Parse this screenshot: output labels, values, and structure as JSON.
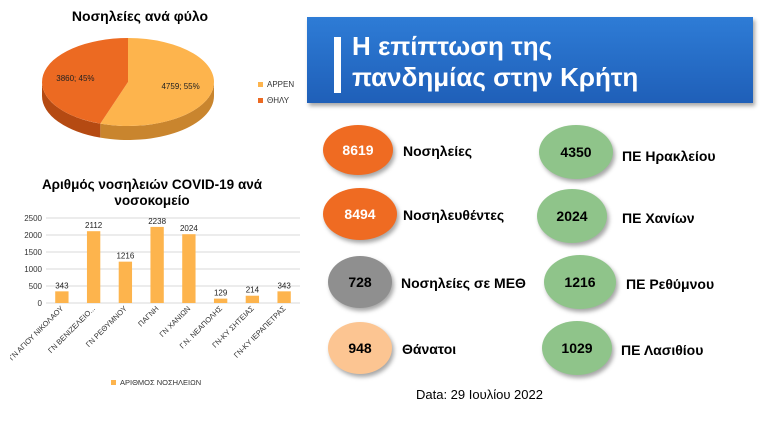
{
  "pie": {
    "title": "Νοσηλείες ανά φύλο",
    "legend": [
      {
        "label": "ΑΡΡΕΝ",
        "color": "#fdb44d"
      },
      {
        "label": "ΘΗΛΥ",
        "color": "#ec6a22"
      }
    ]
  },
  "bars": {
    "title": "Αριθμός νοσηλειών COVID-19 ανά νοσοκομείο",
    "legend_label": "ΑΡΙΘΜΟΣ ΝΟΣΗΛΕΙΩΝ",
    "color": "#fdb44d"
  },
  "chart_data": [
    {
      "type": "pie",
      "title": "Νοσηλείες ανά φύλο",
      "labels": [
        "ΑΡΡΕΝ",
        "ΘΗΛΥ"
      ],
      "values": [
        4759,
        3860
      ],
      "data_labels": [
        "4759; 55%",
        "3860; 45%"
      ]
    },
    {
      "type": "bar",
      "title": "Αριθμός νοσηλειών COVID-19 ανά νοσοκομείο",
      "categories": [
        "ΓΝ ΑΓΙΟΥ ΝΙΚΟΛΑΟΥ",
        "ΓΝ ΒΕΝΙΖΕΛΕΙΟ...",
        "ΓΝ ΡΕΘΥΜΝΟΥ",
        "ΠΑΓΝΗ",
        "ΓΝ ΧΑΝΙΩΝ",
        "Γ.Ν. ΝΕΑΠΟΛΗΣ",
        "ΓΝ-ΚΥ ΣΗΤΕΙΑΣ",
        "ΓΝ-ΚΥ ΙΕΡΑΠΕΤΡΑΣ"
      ],
      "series": [
        {
          "name": "ΑΡΙΘΜΟΣ ΝΟΣΗΛΕΙΩΝ",
          "values": [
            343,
            2112,
            1216,
            2238,
            2024,
            129,
            214,
            343
          ]
        }
      ],
      "ylim": [
        0,
        2500
      ],
      "yticks": [
        0,
        500,
        1000,
        1500,
        2000,
        2500
      ],
      "grid": true,
      "legend": "bottom"
    }
  ],
  "banner": {
    "line1": "Η επίπτωση της",
    "line2": "πανδημίας στην Κρήτη"
  },
  "stats_left": [
    {
      "value": "8619",
      "label": "Νοσηλείες",
      "color": "#ef6b22"
    },
    {
      "value": "8494",
      "label": "Νοσηλευθέντες",
      "color": "#ef6b22"
    },
    {
      "value": "728",
      "label": "Νοσηλείες σε ΜΕΘ",
      "color": "#8f8f8f"
    },
    {
      "value": "948",
      "label": "Θάνατοι",
      "color": "#fcc592"
    }
  ],
  "stats_right": [
    {
      "value": "4350",
      "label": "ΠΕ Ηρακλείου",
      "color": "#8fc48a"
    },
    {
      "value": "2024",
      "label": "ΠΕ Χανίων",
      "color": "#8fc48a"
    },
    {
      "value": "1216",
      "label": "ΠΕ Ρεθύμνου",
      "color": "#8fc48a"
    },
    {
      "value": "1029",
      "label": "ΠΕ Λασιθίου",
      "color": "#8fc48a"
    }
  ],
  "date": "Data: 29 Ιουλίου 2022"
}
